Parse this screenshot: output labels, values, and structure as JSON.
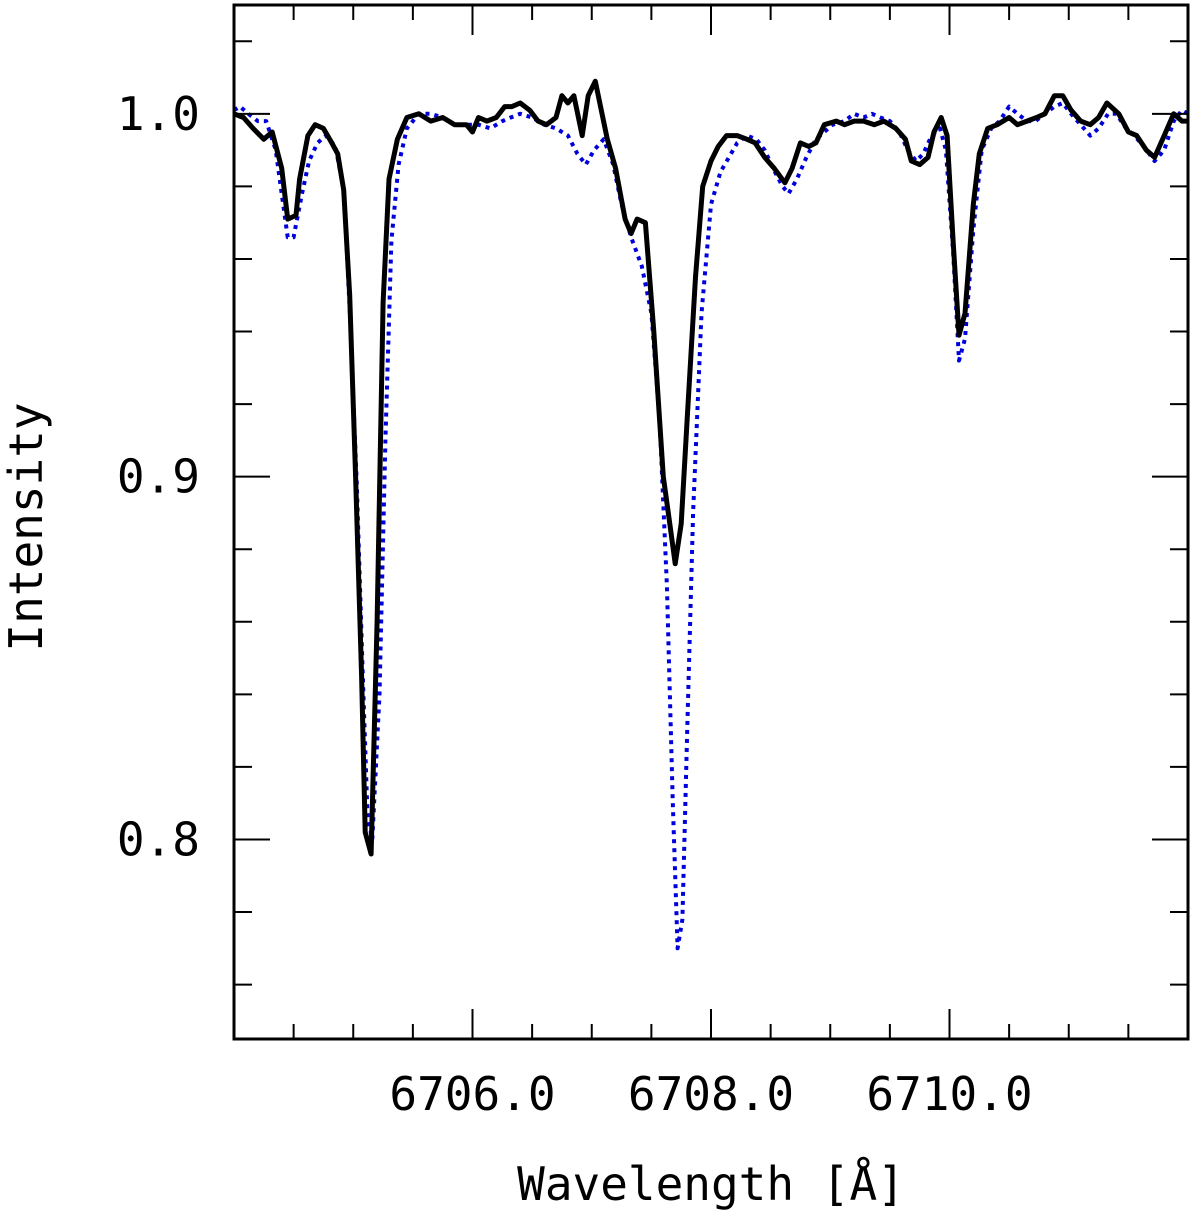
{
  "chart_data": {
    "type": "line",
    "xlabel": "Wavelength [Å]",
    "ylabel": "Intensity",
    "xlim": [
      6704.0,
      6712.0
    ],
    "ylim": [
      0.745,
      1.03
    ],
    "x_major_ticks": [
      6706.0,
      6708.0,
      6710.0
    ],
    "x_tick_labels": [
      "6706.0",
      "6708.0",
      "6710.0"
    ],
    "x_minor_step": 0.5,
    "y_major_ticks": [
      0.8,
      0.9,
      1.0
    ],
    "y_tick_labels": [
      "0.8",
      "0.9",
      "1.0"
    ],
    "y_minor_step": 0.02,
    "grid": false,
    "series": [
      {
        "style": "solid",
        "color": "#000000",
        "points": [
          [
            6704.0,
            1.0
          ],
          [
            6704.08,
            0.999
          ],
          [
            6704.16,
            0.996
          ],
          [
            6704.25,
            0.993
          ],
          [
            6704.32,
            0.995
          ],
          [
            6704.4,
            0.985
          ],
          [
            6704.45,
            0.971
          ],
          [
            6704.52,
            0.972
          ],
          [
            6704.55,
            0.982
          ],
          [
            6704.62,
            0.994
          ],
          [
            6704.68,
            0.997
          ],
          [
            6704.75,
            0.996
          ],
          [
            6704.82,
            0.992
          ],
          [
            6704.87,
            0.989
          ],
          [
            6704.92,
            0.979
          ],
          [
            6704.97,
            0.95
          ],
          [
            6705.02,
            0.9
          ],
          [
            6705.07,
            0.845
          ],
          [
            6705.1,
            0.802
          ],
          [
            6705.15,
            0.796
          ],
          [
            6705.2,
            0.86
          ],
          [
            6705.25,
            0.948
          ],
          [
            6705.3,
            0.982
          ],
          [
            6705.37,
            0.993
          ],
          [
            6705.45,
            0.999
          ],
          [
            6705.55,
            1.0
          ],
          [
            6705.65,
            0.998
          ],
          [
            6705.75,
            0.999
          ],
          [
            6705.85,
            0.997
          ],
          [
            6705.95,
            0.997
          ],
          [
            6706.0,
            0.995
          ],
          [
            6706.05,
            0.999
          ],
          [
            6706.12,
            0.998
          ],
          [
            6706.2,
            0.999
          ],
          [
            6706.27,
            1.002
          ],
          [
            6706.33,
            1.002
          ],
          [
            6706.4,
            1.003
          ],
          [
            6706.48,
            1.001
          ],
          [
            6706.55,
            0.998
          ],
          [
            6706.62,
            0.997
          ],
          [
            6706.7,
            0.999
          ],
          [
            6706.75,
            1.005
          ],
          [
            6706.8,
            1.003
          ],
          [
            6706.85,
            1.005
          ],
          [
            6706.92,
            0.994
          ],
          [
            6706.97,
            1.005
          ],
          [
            6707.03,
            1.009
          ],
          [
            6707.08,
            1.001
          ],
          [
            6707.13,
            0.993
          ],
          [
            6707.2,
            0.985
          ],
          [
            6707.28,
            0.971
          ],
          [
            6707.33,
            0.967
          ],
          [
            6707.38,
            0.971
          ],
          [
            6707.45,
            0.97
          ],
          [
            6707.52,
            0.94
          ],
          [
            6707.6,
            0.9
          ],
          [
            6707.65,
            0.888
          ],
          [
            6707.7,
            0.876
          ],
          [
            6707.75,
            0.887
          ],
          [
            6707.8,
            0.916
          ],
          [
            6707.87,
            0.955
          ],
          [
            6707.93,
            0.98
          ],
          [
            6708.0,
            0.987
          ],
          [
            6708.06,
            0.991
          ],
          [
            6708.13,
            0.994
          ],
          [
            6708.22,
            0.994
          ],
          [
            6708.3,
            0.993
          ],
          [
            6708.37,
            0.992
          ],
          [
            6708.45,
            0.988
          ],
          [
            6708.53,
            0.985
          ],
          [
            6708.62,
            0.981
          ],
          [
            6708.68,
            0.985
          ],
          [
            6708.75,
            0.992
          ],
          [
            6708.82,
            0.991
          ],
          [
            6708.88,
            0.992
          ],
          [
            6708.95,
            0.997
          ],
          [
            6709.05,
            0.998
          ],
          [
            6709.12,
            0.997
          ],
          [
            6709.2,
            0.998
          ],
          [
            6709.28,
            0.998
          ],
          [
            6709.37,
            0.997
          ],
          [
            6709.45,
            0.998
          ],
          [
            6709.55,
            0.996
          ],
          [
            6709.63,
            0.993
          ],
          [
            6709.68,
            0.987
          ],
          [
            6709.75,
            0.986
          ],
          [
            6709.82,
            0.988
          ],
          [
            6709.87,
            0.995
          ],
          [
            6709.93,
            0.999
          ],
          [
            6709.98,
            0.994
          ],
          [
            6710.03,
            0.965
          ],
          [
            6710.08,
            0.939
          ],
          [
            6710.13,
            0.945
          ],
          [
            6710.2,
            0.975
          ],
          [
            6710.25,
            0.989
          ],
          [
            6710.32,
            0.996
          ],
          [
            6710.4,
            0.997
          ],
          [
            6710.5,
            0.999
          ],
          [
            6710.57,
            0.997
          ],
          [
            6710.65,
            0.998
          ],
          [
            6710.73,
            0.999
          ],
          [
            6710.8,
            1.0
          ],
          [
            6710.88,
            1.005
          ],
          [
            6710.95,
            1.005
          ],
          [
            6711.02,
            1.001
          ],
          [
            6711.1,
            0.998
          ],
          [
            6711.18,
            0.997
          ],
          [
            6711.25,
            0.999
          ],
          [
            6711.32,
            1.003
          ],
          [
            6711.42,
            1.0
          ],
          [
            6711.5,
            0.995
          ],
          [
            6711.57,
            0.994
          ],
          [
            6711.65,
            0.99
          ],
          [
            6711.72,
            0.988
          ],
          [
            6711.8,
            0.994
          ],
          [
            6711.88,
            1.0
          ],
          [
            6711.95,
            0.998
          ],
          [
            6712.0,
            0.998
          ]
        ]
      },
      {
        "style": "dotted",
        "color": "#0000dd",
        "points": [
          [
            6704.0,
            1.001
          ],
          [
            6704.05,
            1.002
          ],
          [
            6704.12,
            1.0
          ],
          [
            6704.2,
            0.998
          ],
          [
            6704.27,
            0.998
          ],
          [
            6704.35,
            0.99
          ],
          [
            6704.4,
            0.978
          ],
          [
            6704.45,
            0.966
          ],
          [
            6704.5,
            0.966
          ],
          [
            6704.57,
            0.978
          ],
          [
            6704.63,
            0.987
          ],
          [
            6704.7,
            0.992
          ],
          [
            6704.77,
            0.994
          ],
          [
            6704.85,
            0.991
          ],
          [
            6704.92,
            0.979
          ],
          [
            6704.97,
            0.946
          ],
          [
            6705.03,
            0.898
          ],
          [
            6705.08,
            0.845
          ],
          [
            6705.12,
            0.806
          ],
          [
            6705.16,
            0.8
          ],
          [
            6705.22,
            0.84
          ],
          [
            6705.27,
            0.91
          ],
          [
            6705.32,
            0.965
          ],
          [
            6705.38,
            0.986
          ],
          [
            6705.45,
            0.996
          ],
          [
            6705.55,
            1.0
          ],
          [
            6705.65,
            1.0
          ],
          [
            6705.75,
            0.999
          ],
          [
            6705.85,
            0.997
          ],
          [
            6705.95,
            0.997
          ],
          [
            6706.05,
            0.997
          ],
          [
            6706.15,
            0.996
          ],
          [
            6706.25,
            0.998
          ],
          [
            6706.32,
            0.999
          ],
          [
            6706.4,
            1.0
          ],
          [
            6706.5,
            0.999
          ],
          [
            6706.6,
            0.997
          ],
          [
            6706.7,
            0.996
          ],
          [
            6706.8,
            0.994
          ],
          [
            6706.88,
            0.989
          ],
          [
            6706.95,
            0.986
          ],
          [
            6707.02,
            0.99
          ],
          [
            6707.1,
            0.993
          ],
          [
            6707.18,
            0.986
          ],
          [
            6707.25,
            0.975
          ],
          [
            6707.33,
            0.966
          ],
          [
            6707.42,
            0.958
          ],
          [
            6707.5,
            0.945
          ],
          [
            6707.57,
            0.915
          ],
          [
            6707.63,
            0.87
          ],
          [
            6707.68,
            0.81
          ],
          [
            6707.72,
            0.77
          ],
          [
            6707.76,
            0.778
          ],
          [
            6707.8,
            0.83
          ],
          [
            6707.85,
            0.89
          ],
          [
            6707.92,
            0.945
          ],
          [
            6708.0,
            0.975
          ],
          [
            6708.08,
            0.984
          ],
          [
            6708.15,
            0.988
          ],
          [
            6708.22,
            0.992
          ],
          [
            6708.3,
            0.994
          ],
          [
            6708.38,
            0.993
          ],
          [
            6708.45,
            0.99
          ],
          [
            6708.52,
            0.985
          ],
          [
            6708.6,
            0.98
          ],
          [
            6708.65,
            0.978
          ],
          [
            6708.72,
            0.982
          ],
          [
            6708.8,
            0.988
          ],
          [
            6708.88,
            0.993
          ],
          [
            6708.95,
            0.995
          ],
          [
            6709.02,
            0.997
          ],
          [
            6709.12,
            0.998
          ],
          [
            6709.2,
            1.0
          ],
          [
            6709.28,
            0.999
          ],
          [
            6709.35,
            1.0
          ],
          [
            6709.42,
            0.999
          ],
          [
            6709.5,
            0.998
          ],
          [
            6709.58,
            0.995
          ],
          [
            6709.65,
            0.99
          ],
          [
            6709.72,
            0.987
          ],
          [
            6709.78,
            0.989
          ],
          [
            6709.85,
            0.994
          ],
          [
            6709.92,
            0.996
          ],
          [
            6709.97,
            0.99
          ],
          [
            6710.03,
            0.962
          ],
          [
            6710.08,
            0.932
          ],
          [
            6710.13,
            0.938
          ],
          [
            6710.2,
            0.968
          ],
          [
            6710.27,
            0.99
          ],
          [
            6710.35,
            0.996
          ],
          [
            6710.42,
            0.998
          ],
          [
            6710.5,
            1.002
          ],
          [
            6710.57,
            1.0
          ],
          [
            6710.65,
            0.998
          ],
          [
            6710.72,
            0.998
          ],
          [
            6710.8,
            1.0
          ],
          [
            6710.88,
            1.002
          ],
          [
            6710.95,
            1.003
          ],
          [
            6711.02,
            1.0
          ],
          [
            6711.1,
            0.997
          ],
          [
            6711.18,
            0.994
          ],
          [
            6711.25,
            0.996
          ],
          [
            6711.33,
            1.0
          ],
          [
            6711.4,
            1.0
          ],
          [
            6711.48,
            0.996
          ],
          [
            6711.55,
            0.994
          ],
          [
            6711.63,
            0.991
          ],
          [
            6711.72,
            0.987
          ],
          [
            6711.8,
            0.99
          ],
          [
            6711.88,
            0.998
          ],
          [
            6711.95,
            1.001
          ],
          [
            6712.0,
            1.0
          ]
        ]
      }
    ]
  }
}
